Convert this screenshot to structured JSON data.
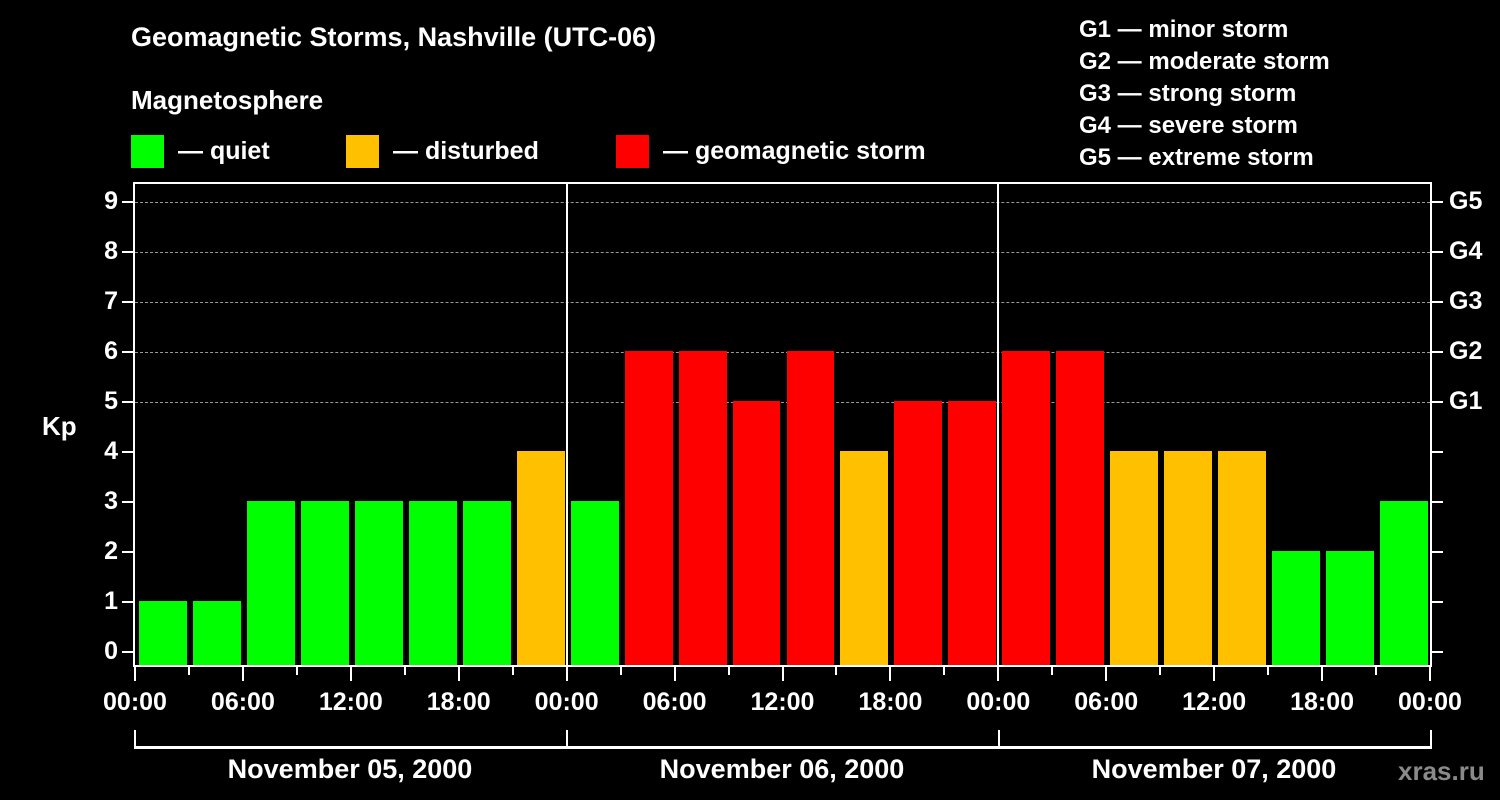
{
  "header": {
    "title": "Geomagnetic Storms, Nashville (UTC-06)",
    "subtitle": "Magnetosphere"
  },
  "legend": [
    {
      "label": "— quiet",
      "color": "#00ff00"
    },
    {
      "label": "— disturbed",
      "color": "#ffc000"
    },
    {
      "label": "— geomagnetic storm",
      "color": "#ff0000"
    }
  ],
  "g_scale_legend": [
    "G1 — minor storm",
    "G2 — moderate storm",
    "G3 — strong storm",
    "G4 — severe storm",
    "G5 — extreme storm"
  ],
  "watermark": "xras.ru",
  "chart_data": {
    "type": "bar",
    "title": "Geomagnetic Storms, Nashville (UTC-06)",
    "subtitle": "Magnetosphere",
    "ylabel": "Kp",
    "xlabel": "",
    "ylim": [
      0,
      9
    ],
    "yticks": [
      "0",
      "1",
      "2",
      "3",
      "4",
      "5",
      "6",
      "7",
      "8",
      "9"
    ],
    "right_axis_ticks": [
      {
        "kp": 5,
        "label": "G1"
      },
      {
        "kp": 6,
        "label": "G2"
      },
      {
        "kp": 7,
        "label": "G3"
      },
      {
        "kp": 8,
        "label": "G4"
      },
      {
        "kp": 9,
        "label": "G5"
      }
    ],
    "grid": "dashed horizontal at Kp 5-9",
    "xtick_labels": [
      "00:00",
      "06:00",
      "12:00",
      "18:00",
      "00:00",
      "06:00",
      "12:00",
      "18:00",
      "00:00",
      "06:00",
      "12:00",
      "18:00",
      "00:00"
    ],
    "days": [
      "November 05, 2000",
      "November 06, 2000",
      "November 07, 2000"
    ],
    "categories": [
      "Nov 05 00-03",
      "Nov 05 03-06",
      "Nov 05 06-09",
      "Nov 05 09-12",
      "Nov 05 12-15",
      "Nov 05 15-18",
      "Nov 05 18-21",
      "Nov 05 21-24",
      "Nov 06 00-03",
      "Nov 06 03-06",
      "Nov 06 06-09",
      "Nov 06 09-12",
      "Nov 06 12-15",
      "Nov 06 15-18",
      "Nov 06 18-21",
      "Nov 06 21-24",
      "Nov 07 00-03",
      "Nov 07 03-06",
      "Nov 07 06-09",
      "Nov 07 09-12",
      "Nov 07 12-15",
      "Nov 07 15-18",
      "Nov 07 18-21",
      "Nov 07 21-24"
    ],
    "values": [
      1,
      1,
      3,
      3,
      3,
      3,
      3,
      4,
      3,
      6,
      6,
      5,
      6,
      4,
      5,
      5,
      6,
      6,
      4,
      4,
      4,
      2,
      2,
      3
    ],
    "colors": {
      "quiet": "#00ff00",
      "disturbed": "#ffc000",
      "storm": "#ff0000"
    },
    "legend": [
      "quiet",
      "disturbed",
      "geomagnetic storm"
    ],
    "legend_position": "top"
  }
}
